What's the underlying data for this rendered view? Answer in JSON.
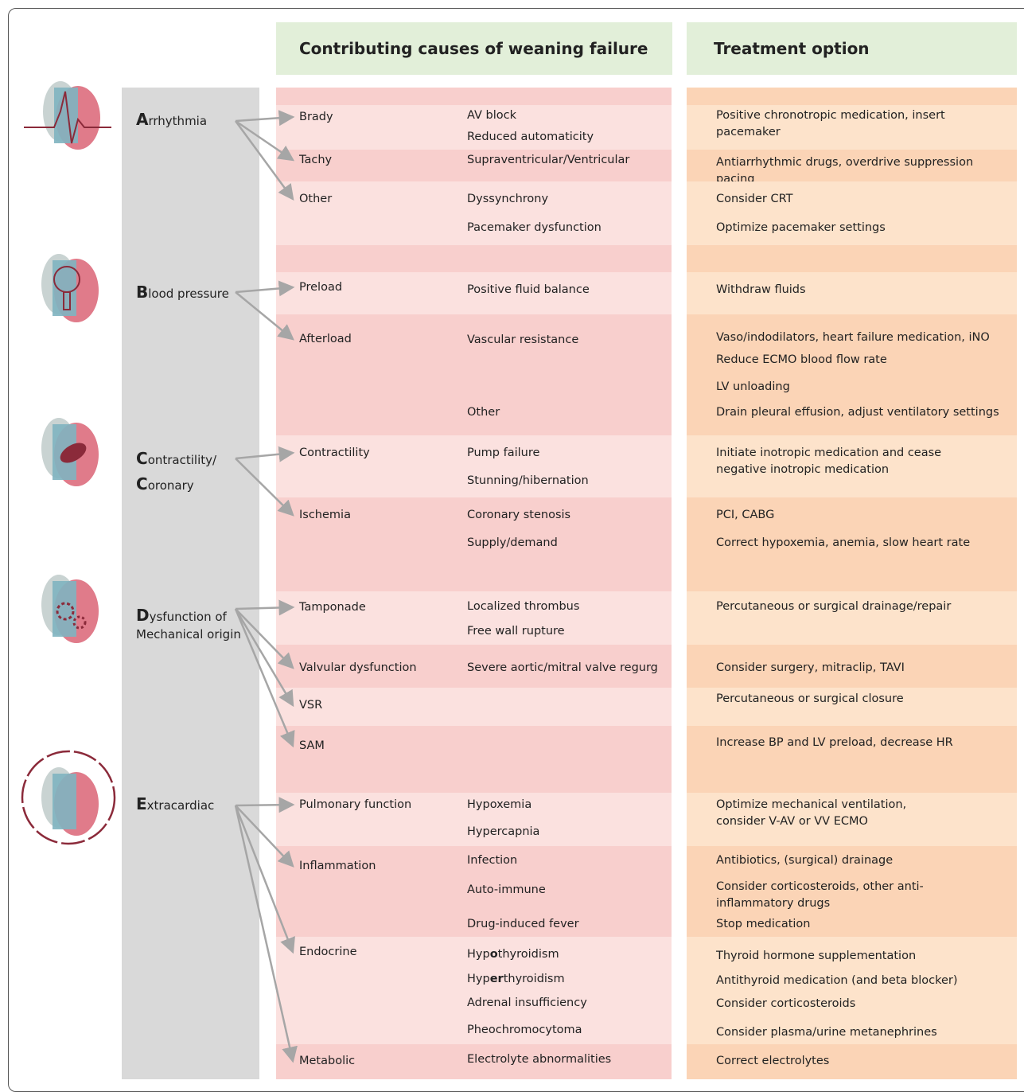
{
  "header": {
    "causes": "Contributing causes of weaning failure",
    "treatment": "Treatment option"
  },
  "groups": [
    {
      "label": [
        [
          {
            "b": "A"
          },
          {
            "t": "rrhythmia"
          }
        ]
      ],
      "rows": [
        {
          "name": "Brady",
          "details": [
            "AV block",
            "Reduced automaticity"
          ],
          "treatments": [
            "Positive chronotropic medication, insert pacemaker"
          ]
        },
        {
          "name": "Tachy",
          "details": [
            "Supraventricular/Ventricular"
          ],
          "treatments": [
            "Antiarrhythmic drugs, overdrive suppression pacing"
          ]
        },
        {
          "name": "Other",
          "details": [
            "Dyssynchrony",
            "Pacemaker dysfunction"
          ],
          "treatments": [
            "Consider CRT",
            "Optimize pacemaker settings"
          ]
        }
      ]
    },
    {
      "label": [
        [
          {
            "b": "B"
          },
          {
            "t": "lood pressure"
          }
        ]
      ],
      "rows": [
        {
          "name": "Preload",
          "details": [
            "Positive fluid balance"
          ],
          "treatments": [
            "Withdraw fluids"
          ]
        },
        {
          "name": "Afterload",
          "details": [
            "Vascular resistance",
            "Other"
          ],
          "treatments": [
            "Vaso/indodilators, heart failure medication, iNO",
            "Reduce ECMO blood flow rate",
            "LV unloading",
            "Drain pleural effusion, adjust ventilatory settings"
          ]
        }
      ]
    },
    {
      "label": [
        [
          {
            "b": "C"
          },
          {
            "t": "ontractility/"
          }
        ],
        [
          {
            "b": "C"
          },
          {
            "t": "oronary"
          }
        ]
      ],
      "rows": [
        {
          "name": "Contractility",
          "details": [
            "Pump failure",
            "Stunning/hibernation"
          ],
          "treatments": [
            "Initiate inotropic medication and cease negative inotropic medication"
          ]
        },
        {
          "name": "Ischemia",
          "details": [
            "Coronary stenosis",
            "Supply/demand"
          ],
          "treatments": [
            "PCI, CABG",
            "Correct hypoxemia, anemia, slow heart rate"
          ]
        }
      ]
    },
    {
      "label": [
        [
          {
            "b": "D"
          },
          {
            "t": "ysfunction of"
          }
        ],
        [
          {
            "t": "Mechanical origin"
          }
        ]
      ],
      "rows": [
        {
          "name": "Tamponade",
          "details": [
            "Localized thrombus",
            "Free wall rupture"
          ],
          "treatments": [
            "Percutaneous or surgical drainage/repair"
          ]
        },
        {
          "name": "Valvular dysfunction",
          "details": [
            "Severe aortic/mitral valve regurg"
          ],
          "treatments": [
            "Consider surgery, mitraclip, TAVI"
          ]
        },
        {
          "name": "VSR",
          "details": [],
          "treatments": [
            "Percutaneous or surgical closure"
          ]
        },
        {
          "name": "SAM",
          "details": [],
          "treatments": [
            "Increase BP and LV preload, decrease HR"
          ]
        }
      ]
    },
    {
      "label": [
        [
          {
            "b": "E"
          },
          {
            "t": "xtracardiac"
          }
        ]
      ],
      "rows": [
        {
          "name": "Pulmonary function",
          "details": [
            "Hypoxemia",
            "Hypercapnia"
          ],
          "treatments": [
            "Optimize mechanical ventilation, consider V-AV or VV ECMO"
          ]
        },
        {
          "name": "Inflammation",
          "details": [
            "Infection",
            "Auto-immune",
            "Drug-induced fever"
          ],
          "treatments": [
            "Antibiotics, (surgical) drainage",
            "Consider corticosteroids, other anti-inflammatory drugs",
            "Stop medication"
          ]
        },
        {
          "name": "Endocrine",
          "details": [
            [
              {
                "t": "Hyp"
              },
              {
                "b": "o"
              },
              {
                "t": "thyroidism"
              }
            ],
            [
              {
                "t": "Hyp"
              },
              {
                "b": "er"
              },
              {
                "t": "thyroidism"
              }
            ],
            "Adrenal insufficiency",
            "Pheochromocytoma"
          ],
          "treatments": [
            "Thyroid hormone supplementation",
            "Antithyroid medication (and beta blocker)",
            "Consider corticosteroids",
            "Consider plasma/urine metanephrines"
          ]
        },
        {
          "name": "Metabolic",
          "details": [
            "Electrolyte abnormalities"
          ],
          "treatments": [
            "Correct electrolytes"
          ]
        }
      ]
    }
  ]
}
